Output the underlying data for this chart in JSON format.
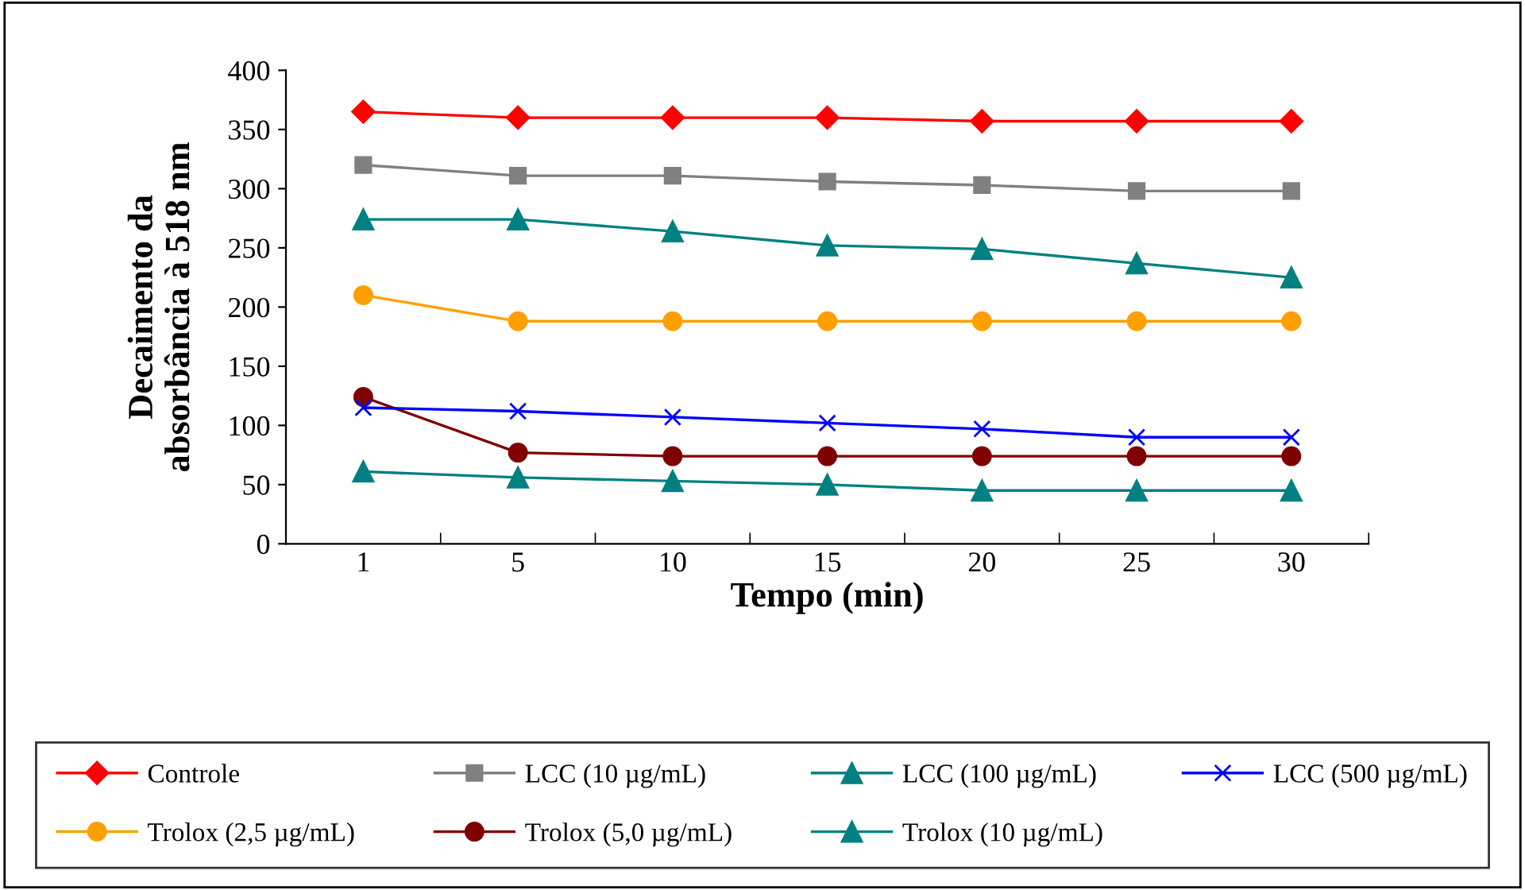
{
  "chart_data": {
    "type": "line",
    "xlabel": "Tempo (min)",
    "ylabel": "Decaimento da\nabsorbância à 518 nm",
    "categories": [
      "1",
      "5",
      "10",
      "15",
      "20",
      "25",
      "30"
    ],
    "ylim": [
      0,
      400
    ],
    "yticks": [
      0,
      50,
      100,
      150,
      200,
      250,
      300,
      350,
      400
    ],
    "grid": false,
    "legend": "bottom",
    "series": [
      {
        "name": "Controle",
        "color": "#ff0000",
        "marker": "diamond",
        "values": [
          365,
          360,
          360,
          360,
          357,
          357,
          357
        ]
      },
      {
        "name": "LCC (10 µg/mL)",
        "color": "#808080",
        "marker": "square",
        "values": [
          320,
          311,
          311,
          306,
          303,
          298,
          298
        ]
      },
      {
        "name": "LCC (100 µg/mL)",
        "color": "#008080",
        "marker": "triangle",
        "values": [
          274,
          274,
          264,
          252,
          249,
          237,
          225
        ]
      },
      {
        "name": "LCC (500 µg/mL)",
        "color": "#0000ff",
        "marker": "cross",
        "values": [
          115,
          112,
          107,
          102,
          97,
          90,
          90
        ]
      },
      {
        "name": "Trolox (2,5 µg/mL)",
        "color": "#ffa000",
        "marker": "circle",
        "values": [
          210,
          188,
          188,
          188,
          188,
          188,
          188
        ]
      },
      {
        "name": "Trolox (5,0 µg/mL)",
        "color": "#800000",
        "marker": "circle",
        "values": [
          124,
          77,
          74,
          74,
          74,
          74,
          74
        ]
      },
      {
        "name": "Trolox (10 µg/mL)",
        "color": "#008080",
        "marker": "triangle",
        "values": [
          61,
          56,
          53,
          50,
          45,
          45,
          45
        ]
      }
    ]
  }
}
